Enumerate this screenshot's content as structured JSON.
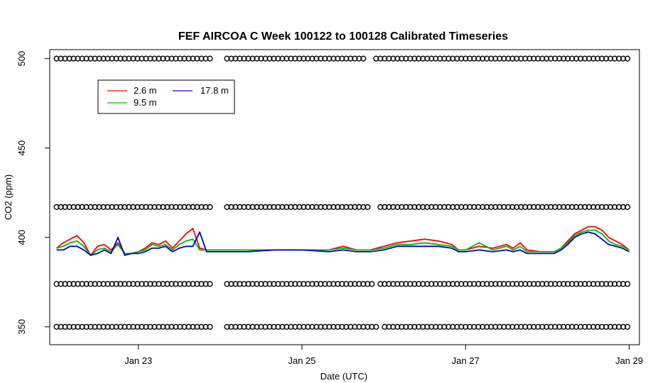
{
  "chart_data": {
    "type": "line",
    "title": "FEF AIRCOA C  Week 100122 to 100128  Calibrated Timeseries",
    "xlabel": "Date (UTC)",
    "ylabel": "CO2 (ppm)",
    "xlim": [
      "2010-01-21T22:00",
      "2010-01-29T03:00"
    ],
    "ylim": [
      340,
      505
    ],
    "x_ticks": [
      {
        "value": "2010-01-23T00:00",
        "label": "Jan 23"
      },
      {
        "value": "2010-01-25T00:00",
        "label": "Jan 25"
      },
      {
        "value": "2010-01-27T00:00",
        "label": "Jan 27"
      },
      {
        "value": "2010-01-29T00:00",
        "label": "Jan 29"
      }
    ],
    "y_ticks": [
      350,
      400,
      450,
      500
    ],
    "legend_position": "top-left",
    "series": [
      {
        "name": "2.6 m",
        "color": "#ff0000",
        "points": [
          [
            "2010-01-22T00:00",
            394
          ],
          [
            "2010-01-22T02:00",
            397
          ],
          [
            "2010-01-22T04:00",
            399
          ],
          [
            "2010-01-22T06:00",
            401
          ],
          [
            "2010-01-22T08:00",
            397
          ],
          [
            "2010-01-22T10:00",
            390
          ],
          [
            "2010-01-22T12:00",
            395
          ],
          [
            "2010-01-22T14:00",
            396
          ],
          [
            "2010-01-22T16:00",
            393
          ],
          [
            "2010-01-22T18:00",
            397
          ],
          [
            "2010-01-22T20:00",
            391
          ],
          [
            "2010-01-22T22:00",
            391
          ],
          [
            "2010-01-23T00:00",
            392
          ],
          [
            "2010-01-23T02:00",
            394
          ],
          [
            "2010-01-23T04:00",
            397
          ],
          [
            "2010-01-23T06:00",
            396
          ],
          [
            "2010-01-23T08:00",
            398
          ],
          [
            "2010-01-23T10:00",
            394
          ],
          [
            "2010-01-23T12:00",
            398
          ],
          [
            "2010-01-23T14:00",
            402
          ],
          [
            "2010-01-23T16:00",
            405
          ],
          [
            "2010-01-23T18:00",
            394
          ],
          [
            "2010-01-23T20:00",
            393
          ],
          [
            "2010-01-24T00:00",
            393
          ],
          [
            "2010-01-24T08:00",
            393
          ],
          [
            "2010-01-24T16:00",
            393
          ],
          [
            "2010-01-25T00:00",
            393
          ],
          [
            "2010-01-25T08:00",
            393
          ],
          [
            "2010-01-25T12:00",
            395
          ],
          [
            "2010-01-25T16:00",
            393
          ],
          [
            "2010-01-25T20:00",
            393
          ],
          [
            "2010-01-26T00:00",
            395
          ],
          [
            "2010-01-26T04:00",
            397
          ],
          [
            "2010-01-26T08:00",
            398
          ],
          [
            "2010-01-26T12:00",
            399
          ],
          [
            "2010-01-26T16:00",
            398
          ],
          [
            "2010-01-26T20:00",
            396
          ],
          [
            "2010-01-26T22:00",
            393
          ],
          [
            "2010-01-27T00:00",
            393
          ],
          [
            "2010-01-27T04:00",
            395
          ],
          [
            "2010-01-27T08:00",
            394
          ],
          [
            "2010-01-27T12:00",
            396
          ],
          [
            "2010-01-27T14:00",
            394
          ],
          [
            "2010-01-27T16:00",
            397
          ],
          [
            "2010-01-27T18:00",
            393
          ],
          [
            "2010-01-27T22:00",
            392
          ],
          [
            "2010-01-28T02:00",
            392
          ],
          [
            "2010-01-28T04:00",
            394
          ],
          [
            "2010-01-28T06:00",
            398
          ],
          [
            "2010-01-28T08:00",
            402
          ],
          [
            "2010-01-28T10:00",
            404
          ],
          [
            "2010-01-28T12:00",
            406
          ],
          [
            "2010-01-28T14:00",
            406
          ],
          [
            "2010-01-28T16:00",
            404
          ],
          [
            "2010-01-28T18:00",
            400
          ],
          [
            "2010-01-28T20:00",
            398
          ],
          [
            "2010-01-28T22:00",
            396
          ],
          [
            "2010-01-29T00:00",
            393
          ]
        ]
      },
      {
        "name": "9.5 m",
        "color": "#00bb00",
        "points": [
          [
            "2010-01-22T00:00",
            394
          ],
          [
            "2010-01-22T02:00",
            395
          ],
          [
            "2010-01-22T04:00",
            397
          ],
          [
            "2010-01-22T06:00",
            398
          ],
          [
            "2010-01-22T08:00",
            395
          ],
          [
            "2010-01-22T10:00",
            390
          ],
          [
            "2010-01-22T12:00",
            393
          ],
          [
            "2010-01-22T14:00",
            394
          ],
          [
            "2010-01-22T16:00",
            392
          ],
          [
            "2010-01-22T18:00",
            396
          ],
          [
            "2010-01-22T20:00",
            391
          ],
          [
            "2010-01-22T22:00",
            391
          ],
          [
            "2010-01-23T00:00",
            392
          ],
          [
            "2010-01-23T02:00",
            393
          ],
          [
            "2010-01-23T04:00",
            396
          ],
          [
            "2010-01-23T06:00",
            395
          ],
          [
            "2010-01-23T08:00",
            396
          ],
          [
            "2010-01-23T10:00",
            393
          ],
          [
            "2010-01-23T12:00",
            396
          ],
          [
            "2010-01-23T14:00",
            398
          ],
          [
            "2010-01-23T16:00",
            399
          ],
          [
            "2010-01-23T18:00",
            393
          ],
          [
            "2010-01-23T20:00",
            393
          ],
          [
            "2010-01-24T00:00",
            393
          ],
          [
            "2010-01-24T08:00",
            393
          ],
          [
            "2010-01-24T16:00",
            393
          ],
          [
            "2010-01-25T00:00",
            393
          ],
          [
            "2010-01-25T08:00",
            393
          ],
          [
            "2010-01-25T12:00",
            394
          ],
          [
            "2010-01-25T16:00",
            393
          ],
          [
            "2010-01-25T20:00",
            393
          ],
          [
            "2010-01-26T00:00",
            394
          ],
          [
            "2010-01-26T04:00",
            396
          ],
          [
            "2010-01-26T08:00",
            396
          ],
          [
            "2010-01-26T12:00",
            397
          ],
          [
            "2010-01-26T16:00",
            396
          ],
          [
            "2010-01-26T20:00",
            395
          ],
          [
            "2010-01-26T22:00",
            393
          ],
          [
            "2010-01-27T00:00",
            393
          ],
          [
            "2010-01-27T04:00",
            397
          ],
          [
            "2010-01-27T08:00",
            393
          ],
          [
            "2010-01-27T12:00",
            395
          ],
          [
            "2010-01-27T14:00",
            393
          ],
          [
            "2010-01-27T16:00",
            395
          ],
          [
            "2010-01-27T18:00",
            392
          ],
          [
            "2010-01-27T22:00",
            392
          ],
          [
            "2010-01-28T02:00",
            392
          ],
          [
            "2010-01-28T04:00",
            394
          ],
          [
            "2010-01-28T06:00",
            397
          ],
          [
            "2010-01-28T08:00",
            401
          ],
          [
            "2010-01-28T10:00",
            403
          ],
          [
            "2010-01-28T12:00",
            404
          ],
          [
            "2010-01-28T14:00",
            404
          ],
          [
            "2010-01-28T16:00",
            402
          ],
          [
            "2010-01-28T18:00",
            398
          ],
          [
            "2010-01-28T20:00",
            396
          ],
          [
            "2010-01-28T22:00",
            395
          ],
          [
            "2010-01-29T00:00",
            393
          ]
        ]
      },
      {
        "name": "17.8 m",
        "color": "#0000cc",
        "points": [
          [
            "2010-01-22T00:00",
            393
          ],
          [
            "2010-01-22T02:00",
            393
          ],
          [
            "2010-01-22T04:00",
            395
          ],
          [
            "2010-01-22T06:00",
            395
          ],
          [
            "2010-01-22T08:00",
            393
          ],
          [
            "2010-01-22T10:00",
            390
          ],
          [
            "2010-01-22T12:00",
            391
          ],
          [
            "2010-01-22T14:00",
            393
          ],
          [
            "2010-01-22T16:00",
            391
          ],
          [
            "2010-01-22T18:00",
            400
          ],
          [
            "2010-01-22T20:00",
            390
          ],
          [
            "2010-01-22T22:00",
            391
          ],
          [
            "2010-01-23T00:00",
            391
          ],
          [
            "2010-01-23T02:00",
            392
          ],
          [
            "2010-01-23T04:00",
            394
          ],
          [
            "2010-01-23T06:00",
            394
          ],
          [
            "2010-01-23T08:00",
            395
          ],
          [
            "2010-01-23T10:00",
            392
          ],
          [
            "2010-01-23T12:00",
            394
          ],
          [
            "2010-01-23T14:00",
            395
          ],
          [
            "2010-01-23T16:00",
            395
          ],
          [
            "2010-01-23T18:00",
            403
          ],
          [
            "2010-01-23T20:00",
            392
          ],
          [
            "2010-01-24T00:00",
            392
          ],
          [
            "2010-01-24T08:00",
            392
          ],
          [
            "2010-01-24T16:00",
            393
          ],
          [
            "2010-01-25T00:00",
            393
          ],
          [
            "2010-01-25T08:00",
            392
          ],
          [
            "2010-01-25T12:00",
            393
          ],
          [
            "2010-01-25T16:00",
            392
          ],
          [
            "2010-01-25T20:00",
            392
          ],
          [
            "2010-01-26T00:00",
            393
          ],
          [
            "2010-01-26T04:00",
            395
          ],
          [
            "2010-01-26T08:00",
            395
          ],
          [
            "2010-01-26T12:00",
            395
          ],
          [
            "2010-01-26T16:00",
            395
          ],
          [
            "2010-01-26T20:00",
            394
          ],
          [
            "2010-01-26T22:00",
            392
          ],
          [
            "2010-01-27T00:00",
            392
          ],
          [
            "2010-01-27T04:00",
            393
          ],
          [
            "2010-01-27T08:00",
            392
          ],
          [
            "2010-01-27T12:00",
            393
          ],
          [
            "2010-01-27T14:00",
            392
          ],
          [
            "2010-01-27T16:00",
            393
          ],
          [
            "2010-01-27T18:00",
            391
          ],
          [
            "2010-01-27T22:00",
            391
          ],
          [
            "2010-01-28T02:00",
            391
          ],
          [
            "2010-01-28T04:00",
            393
          ],
          [
            "2010-01-28T06:00",
            396
          ],
          [
            "2010-01-28T08:00",
            400
          ],
          [
            "2010-01-28T10:00",
            402
          ],
          [
            "2010-01-28T12:00",
            403
          ],
          [
            "2010-01-28T14:00",
            402
          ],
          [
            "2010-01-28T16:00",
            399
          ],
          [
            "2010-01-28T18:00",
            396
          ],
          [
            "2010-01-28T20:00",
            395
          ],
          [
            "2010-01-28T22:00",
            394
          ],
          [
            "2010-01-29T00:00",
            392
          ]
        ]
      },
      {
        "name": "",
        "marker": "circle",
        "color": "#000000",
        "description_free": true,
        "y_levels": [
          500,
          417,
          374,
          350
        ],
        "x_range": [
          "2010-01-22T00:00",
          "2010-01-29T00:00"
        ]
      }
    ]
  }
}
